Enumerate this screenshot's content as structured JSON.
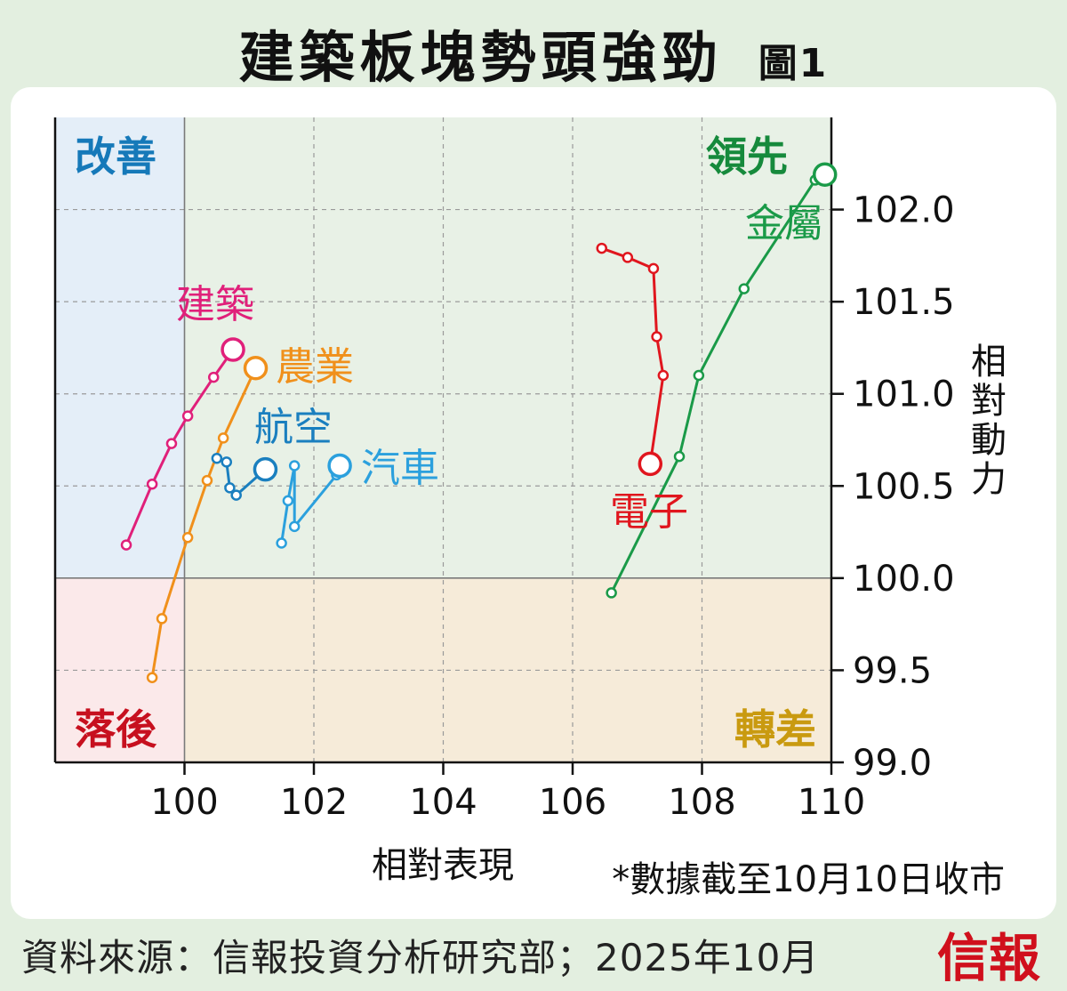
{
  "header": {
    "title": "建築板塊勢頭強勁",
    "figure_tag": "圖1"
  },
  "footer": {
    "footnote": "*數據截至10月10日收市",
    "source": "資料來源：信報投資分析研究部；2025年10月",
    "logo": "信報"
  },
  "chart_data": {
    "type": "scatter",
    "xlabel": "相對表現",
    "ylabel": "相對動力",
    "xlim": [
      98,
      110
    ],
    "ylim": [
      99.0,
      102.5
    ],
    "x_ticks": [
      100,
      102,
      104,
      106,
      108,
      110
    ],
    "y_ticks": [
      99.0,
      99.5,
      100.0,
      100.5,
      101.0,
      101.5,
      102.0
    ],
    "y_tick_labels": [
      "99.0",
      "99.5",
      "100.0",
      "100.5",
      "101.0",
      "101.5",
      "102.0"
    ],
    "grid": true,
    "reference_lines": {
      "x": 100,
      "y": 100
    },
    "quadrants": [
      {
        "label": "改善",
        "position": "top-left",
        "color": "#1679b9",
        "fill": "#e4eef8"
      },
      {
        "label": "領先",
        "position": "top-right",
        "color": "#168a3c",
        "fill": "#e8f1e6"
      },
      {
        "label": "落後",
        "position": "bottom-left",
        "color": "#c7101f",
        "fill": "#fbe9ea"
      },
      {
        "label": "轉差",
        "position": "bottom-right",
        "color": "#c99a10",
        "fill": "#f6ebd9"
      }
    ],
    "series": [
      {
        "name": "建築",
        "color": "#e0207a",
        "points": [
          [
            99.1,
            100.18
          ],
          [
            99.5,
            100.51
          ],
          [
            99.8,
            100.73
          ],
          [
            100.05,
            100.88
          ],
          [
            100.45,
            101.09
          ],
          [
            100.75,
            101.24
          ]
        ]
      },
      {
        "name": "農業",
        "color": "#f0901b",
        "points": [
          [
            99.5,
            99.46
          ],
          [
            99.65,
            99.78
          ],
          [
            100.05,
            100.22
          ],
          [
            100.35,
            100.53
          ],
          [
            100.6,
            100.76
          ],
          [
            101.1,
            101.14
          ]
        ]
      },
      {
        "name": "航空",
        "color": "#1a7fbf",
        "points": [
          [
            100.5,
            100.65
          ],
          [
            100.65,
            100.63
          ],
          [
            100.7,
            100.49
          ],
          [
            100.8,
            100.45
          ],
          [
            101.25,
            100.59
          ]
        ]
      },
      {
        "name": "汽車",
        "color": "#2ba0dd",
        "points": [
          [
            101.5,
            100.19
          ],
          [
            101.6,
            100.42
          ],
          [
            101.7,
            100.61
          ],
          [
            101.7,
            100.28
          ],
          [
            102.35,
            100.56
          ],
          [
            102.4,
            100.61
          ]
        ]
      },
      {
        "name": "電子",
        "color": "#e0161e",
        "points": [
          [
            106.45,
            101.79
          ],
          [
            106.85,
            101.74
          ],
          [
            107.25,
            101.68
          ],
          [
            107.3,
            101.31
          ],
          [
            107.4,
            101.1
          ],
          [
            107.2,
            100.62
          ]
        ]
      },
      {
        "name": "金屬",
        "color": "#1a9a48",
        "points": [
          [
            106.6,
            99.92
          ],
          [
            107.65,
            100.66
          ],
          [
            107.95,
            101.1
          ],
          [
            108.65,
            101.57
          ],
          [
            109.75,
            102.16
          ],
          [
            109.9,
            102.19
          ]
        ]
      }
    ]
  }
}
